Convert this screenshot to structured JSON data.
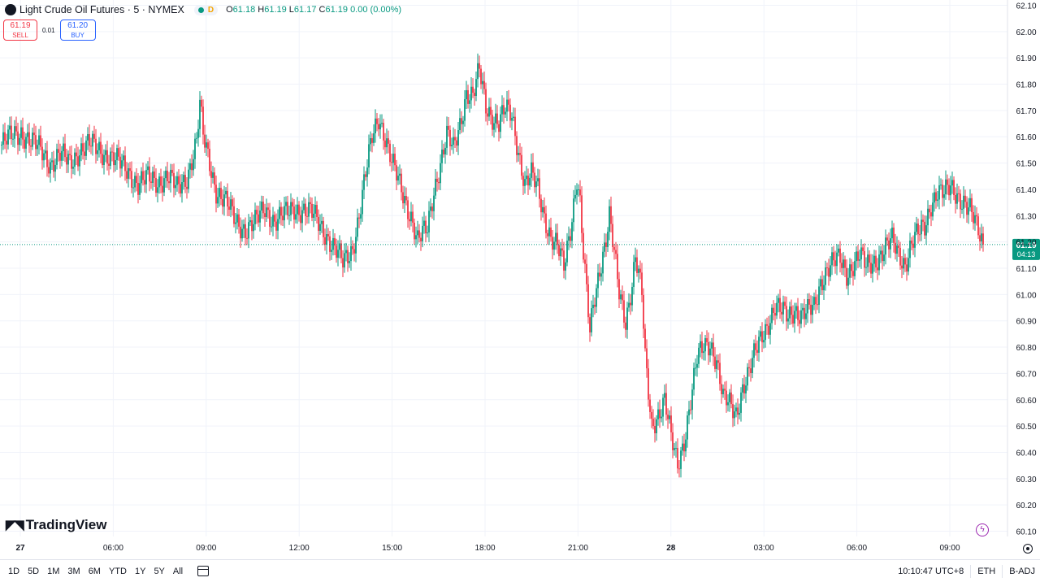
{
  "header": {
    "title": "Light Crude Oil Futures · 5 · NYMEX",
    "badge": "D",
    "ohlc": {
      "o_key": "O",
      "o": "61.18",
      "h_key": "H",
      "h": "61.19",
      "l_key": "L",
      "l": "61.17",
      "c_key": "C",
      "c": "61.19",
      "change": "0.00 (0.00%)"
    }
  },
  "trade": {
    "sell_price": "61.19",
    "sell_label": "SELL",
    "spread": "0.01",
    "buy_price": "61.20",
    "buy_label": "BUY"
  },
  "branding": {
    "logo_text": "TradingView"
  },
  "bottom_bar": {
    "ranges": [
      "1D",
      "5D",
      "1M",
      "3M",
      "6M",
      "YTD",
      "1Y",
      "5Y",
      "All"
    ],
    "time": "10:10:47 UTC+8",
    "session": "ETH",
    "adjust": "B-ADJ"
  },
  "icons": {
    "symbol": "symbol-logo-icon",
    "status": "market-open-dot-icon",
    "calendar": "calendar-range-icon",
    "bolt": "lightning-icon",
    "settings": "gear-icon"
  },
  "colors": {
    "up": "#089981",
    "down": "#f23645",
    "grid": "#f0f3fa",
    "price_line": "#089981",
    "price_label_bg": "#089981",
    "sell": "#f23645",
    "buy": "#2962ff"
  },
  "chart_data": {
    "type": "candlestick",
    "interval": "5",
    "y_axis_ticks": [
      "60.10",
      "60.20",
      "60.30",
      "60.40",
      "60.50",
      "60.60",
      "60.70",
      "60.80",
      "60.90",
      "61.00",
      "61.10",
      "61.20",
      "61.30",
      "61.40",
      "61.50",
      "61.60",
      "61.70",
      "61.80",
      "61.90",
      "62.00",
      "62.10"
    ],
    "ylim": [
      60.08,
      62.12
    ],
    "x_axis_labels": [
      {
        "label": "27",
        "bold": true
      },
      {
        "label": "06:00"
      },
      {
        "label": "09:00"
      },
      {
        "label": "12:00"
      },
      {
        "label": "15:00"
      },
      {
        "label": "18:00"
      },
      {
        "label": "21:00"
      },
      {
        "label": "28",
        "bold": true
      },
      {
        "label": "03:00"
      },
      {
        "label": "06:00"
      },
      {
        "label": "09:00"
      }
    ],
    "current_price": "61.19",
    "countdown": "04:13",
    "close_path": [
      [
        0,
        61.57
      ],
      [
        6,
        61.6
      ],
      [
        12,
        61.62
      ],
      [
        18,
        61.58
      ],
      [
        24,
        61.55
      ],
      [
        30,
        61.5
      ],
      [
        36,
        61.53
      ],
      [
        42,
        61.5
      ],
      [
        48,
        61.55
      ],
      [
        54,
        61.57
      ],
      [
        60,
        61.55
      ],
      [
        66,
        61.53
      ],
      [
        72,
        61.5
      ],
      [
        78,
        61.47
      ],
      [
        84,
        61.42
      ],
      [
        90,
        61.44
      ],
      [
        96,
        61.43
      ],
      [
        102,
        61.45
      ],
      [
        108,
        61.4
      ],
      [
        114,
        61.45
      ],
      [
        120,
        61.58
      ],
      [
        122,
        61.72
      ],
      [
        124,
        61.6
      ],
      [
        128,
        61.5
      ],
      [
        132,
        61.4
      ],
      [
        138,
        61.35
      ],
      [
        144,
        61.28
      ],
      [
        150,
        61.25
      ],
      [
        156,
        61.27
      ],
      [
        162,
        61.33
      ],
      [
        168,
        61.28
      ],
      [
        174,
        61.3
      ],
      [
        180,
        61.33
      ],
      [
        186,
        61.32
      ],
      [
        192,
        61.3
      ],
      [
        198,
        61.25
      ],
      [
        204,
        61.18
      ],
      [
        210,
        61.12
      ],
      [
        216,
        61.18
      ],
      [
        220,
        61.3
      ],
      [
        224,
        61.45
      ],
      [
        228,
        61.6
      ],
      [
        232,
        61.68
      ],
      [
        236,
        61.6
      ],
      [
        240,
        61.5
      ],
      [
        246,
        61.4
      ],
      [
        252,
        61.3
      ],
      [
        256,
        61.2
      ],
      [
        262,
        61.25
      ],
      [
        266,
        61.4
      ],
      [
        270,
        61.5
      ],
      [
        274,
        61.6
      ],
      [
        278,
        61.55
      ],
      [
        282,
        61.65
      ],
      [
        286,
        61.77
      ],
      [
        290,
        61.75
      ],
      [
        294,
        61.85
      ],
      [
        298,
        61.72
      ],
      [
        302,
        61.68
      ],
      [
        306,
        61.65
      ],
      [
        310,
        61.7
      ],
      [
        314,
        61.68
      ],
      [
        318,
        61.55
      ],
      [
        322,
        61.42
      ],
      [
        326,
        61.45
      ],
      [
        330,
        61.4
      ],
      [
        334,
        61.3
      ],
      [
        338,
        61.22
      ],
      [
        342,
        61.18
      ],
      [
        346,
        61.1
      ],
      [
        350,
        61.25
      ],
      [
        354,
        61.45
      ],
      [
        356,
        61.35
      ],
      [
        358,
        61.15
      ],
      [
        360,
        61.0
      ],
      [
        362,
        60.85
      ],
      [
        364,
        60.95
      ],
      [
        368,
        61.1
      ],
      [
        372,
        61.22
      ],
      [
        374,
        61.3
      ],
      [
        376,
        61.2
      ],
      [
        380,
        61.0
      ],
      [
        384,
        60.9
      ],
      [
        388,
        61.05
      ],
      [
        390,
        61.15
      ],
      [
        394,
        61.0
      ],
      [
        396,
        60.75
      ],
      [
        400,
        60.5
      ],
      [
        404,
        60.55
      ],
      [
        408,
        60.6
      ],
      [
        412,
        60.45
      ],
      [
        416,
        60.35
      ],
      [
        420,
        60.45
      ],
      [
        424,
        60.6
      ],
      [
        428,
        60.75
      ],
      [
        432,
        60.8
      ],
      [
        436,
        60.82
      ],
      [
        440,
        60.75
      ],
      [
        444,
        60.6
      ],
      [
        448,
        60.58
      ],
      [
        452,
        60.55
      ],
      [
        456,
        60.65
      ],
      [
        460,
        60.7
      ],
      [
        464,
        60.78
      ],
      [
        468,
        60.85
      ],
      [
        472,
        60.9
      ],
      [
        476,
        60.95
      ],
      [
        480,
        60.93
      ],
      [
        484,
        60.92
      ],
      [
        488,
        60.95
      ],
      [
        492,
        60.92
      ],
      [
        496,
        60.93
      ],
      [
        500,
        60.95
      ],
      [
        504,
        61.05
      ],
      [
        508,
        61.1
      ],
      [
        512,
        61.12
      ],
      [
        516,
        61.13
      ],
      [
        520,
        61.08
      ],
      [
        524,
        61.12
      ],
      [
        528,
        61.15
      ],
      [
        532,
        61.1
      ],
      [
        536,
        61.12
      ],
      [
        540,
        61.15
      ],
      [
        544,
        61.18
      ],
      [
        548,
        61.2
      ],
      [
        552,
        61.15
      ],
      [
        556,
        61.12
      ],
      [
        560,
        61.2
      ],
      [
        564,
        61.23
      ],
      [
        568,
        61.25
      ],
      [
        572,
        61.35
      ],
      [
        576,
        61.4
      ],
      [
        580,
        61.38
      ],
      [
        584,
        61.4
      ],
      [
        588,
        61.38
      ],
      [
        592,
        61.36
      ],
      [
        596,
        61.32
      ],
      [
        600,
        61.25
      ],
      [
        604,
        61.19
      ]
    ]
  }
}
